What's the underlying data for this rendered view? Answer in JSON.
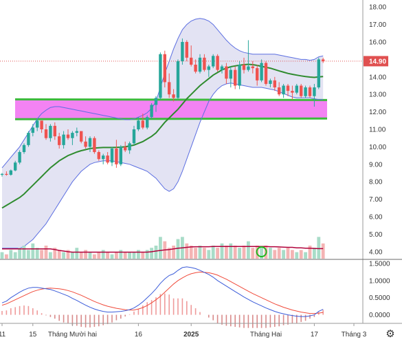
{
  "chart_data": {
    "type": "candlestick",
    "main_panel": {
      "ylim": [
        3.6,
        18.4
      ],
      "yticks": [
        "18.00",
        "17.00",
        "16.00",
        "15.00",
        "14.00",
        "13.00",
        "12.00",
        "11.00",
        "10.00",
        "9.00",
        "8.00",
        "7.00",
        "6.00",
        "5.00",
        "4.00"
      ],
      "last_price": "14.90",
      "bands": {
        "pink_zone": [
          11.7,
          12.6
        ]
      },
      "colors": {
        "up": "#26a69a",
        "down": "#ef5350",
        "ma": "#2e8b2e",
        "bollinger": "#5b6ee1",
        "bollinger_fill": "#e3e3f3",
        "zone_fill": "#f27cf2",
        "zone_edge": "#3cba3c",
        "volume_ma": "#b0003a",
        "price_line": "#e05050",
        "macd": "#3a5bd9",
        "signal": "#f04a3a",
        "hist_up": "#ef9a9a",
        "hist_dn": "#d88a8a",
        "highlight_circle": "#1fb81f"
      },
      "candles": [
        [
          8.4,
          8.5,
          8.3,
          8.45
        ],
        [
          8.45,
          8.6,
          8.35,
          8.4
        ],
        [
          8.4,
          8.7,
          8.35,
          8.65
        ],
        [
          8.65,
          9.2,
          8.6,
          9.1
        ],
        [
          9.1,
          9.8,
          9.0,
          9.7
        ],
        [
          9.7,
          10.2,
          9.6,
          10.1
        ],
        [
          10.1,
          10.9,
          10.0,
          10.8
        ],
        [
          10.8,
          11.3,
          10.6,
          11.1
        ],
        [
          11.1,
          11.6,
          10.9,
          11.5
        ],
        [
          11.5,
          11.4,
          10.8,
          11.0
        ],
        [
          11.0,
          11.3,
          10.4,
          10.5
        ],
        [
          10.5,
          11.3,
          10.3,
          11.2
        ],
        [
          11.2,
          11.4,
          10.4,
          10.6
        ],
        [
          10.6,
          10.8,
          9.9,
          10.1
        ],
        [
          10.1,
          10.9,
          9.9,
          10.7
        ],
        [
          10.7,
          11.0,
          10.4,
          10.5
        ],
        [
          10.5,
          10.9,
          10.1,
          10.8
        ],
        [
          10.8,
          11.1,
          10.6,
          10.9
        ],
        [
          10.9,
          10.8,
          10.2,
          10.3
        ],
        [
          10.3,
          10.6,
          9.9,
          10.0
        ],
        [
          10.0,
          10.6,
          9.7,
          10.5
        ],
        [
          10.5,
          10.6,
          9.6,
          9.7
        ],
        [
          9.7,
          9.8,
          9.2,
          9.3
        ],
        [
          9.3,
          9.6,
          9.0,
          9.5
        ],
        [
          9.5,
          9.7,
          9.0,
          9.1
        ],
        [
          9.1,
          10.0,
          8.9,
          9.9
        ],
        [
          9.9,
          10.4,
          8.8,
          9.0
        ],
        [
          9.0,
          10.1,
          8.9,
          10.0
        ],
        [
          10.0,
          10.3,
          9.7,
          9.8
        ],
        [
          9.8,
          10.3,
          9.6,
          10.2
        ],
        [
          10.2,
          11.2,
          10.1,
          11.0
        ],
        [
          11.0,
          11.7,
          10.9,
          11.5
        ],
        [
          11.5,
          11.9,
          11.0,
          11.1
        ],
        [
          11.1,
          11.8,
          11.0,
          11.7
        ],
        [
          11.7,
          12.5,
          11.6,
          12.4
        ],
        [
          12.4,
          12.9,
          12.0,
          12.8
        ],
        [
          12.8,
          15.4,
          12.7,
          15.3
        ],
        [
          15.3,
          15.5,
          13.4,
          13.7
        ],
        [
          13.7,
          14.2,
          12.8,
          13.0
        ],
        [
          13.0,
          13.3,
          12.6,
          12.8
        ],
        [
          12.8,
          15.0,
          12.7,
          14.9
        ],
        [
          14.9,
          16.2,
          14.7,
          16.0
        ],
        [
          16.0,
          16.1,
          14.9,
          15.1
        ],
        [
          15.1,
          15.8,
          14.6,
          14.7
        ],
        [
          14.7,
          15.0,
          14.2,
          14.3
        ],
        [
          14.3,
          15.3,
          14.2,
          15.1
        ],
        [
          15.1,
          15.3,
          14.3,
          14.4
        ],
        [
          14.4,
          14.7,
          14.0,
          14.6
        ],
        [
          14.6,
          15.3,
          14.5,
          15.2
        ],
        [
          15.2,
          15.3,
          14.3,
          14.4
        ],
        [
          14.4,
          14.7,
          14.2,
          14.6
        ],
        [
          14.6,
          14.8,
          13.6,
          13.9
        ],
        [
          13.9,
          14.6,
          13.4,
          14.4
        ],
        [
          14.4,
          14.6,
          13.3,
          13.5
        ],
        [
          13.5,
          14.9,
          13.3,
          14.7
        ],
        [
          14.7,
          15.1,
          14.2,
          14.4
        ],
        [
          14.4,
          16.1,
          14.3,
          14.6
        ],
        [
          14.6,
          14.9,
          14.2,
          14.5
        ],
        [
          14.5,
          14.7,
          13.5,
          13.8
        ],
        [
          13.8,
          15.0,
          13.7,
          14.8
        ],
        [
          14.8,
          14.9,
          13.5,
          13.6
        ],
        [
          13.6,
          13.9,
          13.4,
          13.8
        ],
        [
          13.8,
          14.0,
          13.2,
          13.4
        ],
        [
          13.4,
          13.7,
          12.9,
          13.0
        ],
        [
          13.0,
          13.6,
          12.8,
          13.5
        ],
        [
          13.5,
          13.6,
          12.9,
          13.2
        ],
        [
          13.2,
          13.5,
          12.7,
          13.1
        ],
        [
          13.1,
          13.6,
          13.0,
          13.5
        ],
        [
          13.5,
          13.6,
          12.8,
          12.9
        ],
        [
          12.9,
          13.5,
          12.8,
          13.4
        ],
        [
          13.4,
          13.5,
          12.8,
          12.9
        ],
        [
          12.9,
          13.6,
          12.3,
          13.4
        ],
        [
          13.4,
          15.1,
          13.3,
          15.0
        ],
        [
          15.0,
          15.1,
          14.8,
          14.9
        ]
      ],
      "ma20": [
        6.5,
        6.65,
        6.8,
        6.95,
        7.1,
        7.3,
        7.55,
        7.8,
        8.05,
        8.3,
        8.55,
        8.8,
        9.0,
        9.2,
        9.35,
        9.5,
        9.6,
        9.7,
        9.78,
        9.84,
        9.9,
        9.93,
        9.95,
        9.96,
        9.96,
        9.96,
        9.97,
        9.98,
        10.0,
        10.05,
        10.1,
        10.2,
        10.3,
        10.45,
        10.6,
        10.8,
        11.1,
        11.4,
        11.65,
        11.9,
        12.15,
        12.45,
        12.75,
        13.0,
        13.25,
        13.5,
        13.7,
        13.9,
        14.1,
        14.25,
        14.4,
        14.5,
        14.58,
        14.63,
        14.67,
        14.7,
        14.72,
        14.7,
        14.66,
        14.6,
        14.55,
        14.5,
        14.42,
        14.34,
        14.27,
        14.2,
        14.15,
        14.1,
        14.06,
        14.02,
        13.99,
        13.97,
        14.0,
        14.02
      ],
      "bb_upper": [
        8.8,
        9.1,
        9.4,
        9.7,
        10.0,
        10.4,
        10.8,
        11.2,
        11.6,
        11.9,
        12.1,
        12.25,
        12.3,
        12.3,
        12.25,
        12.2,
        12.15,
        12.1,
        12.05,
        12.0,
        11.95,
        11.9,
        11.85,
        11.8,
        11.75,
        11.7,
        11.65,
        11.6,
        11.55,
        11.55,
        11.6,
        11.7,
        11.8,
        11.95,
        12.2,
        12.6,
        13.4,
        14.2,
        14.9,
        15.6,
        16.2,
        16.7,
        17.0,
        17.2,
        17.3,
        17.35,
        17.3,
        17.2,
        17.0,
        16.7,
        16.4,
        16.1,
        15.85,
        15.65,
        15.5,
        15.4,
        15.35,
        15.3,
        15.3,
        15.3,
        15.3,
        15.3,
        15.3,
        15.25,
        15.2,
        15.15,
        15.1,
        15.05,
        15.0,
        15.0,
        14.95,
        15.0,
        15.15,
        15.2
      ],
      "bb_lower": [
        4.2,
        4.2,
        4.2,
        4.2,
        4.2,
        4.3,
        4.5,
        4.7,
        5.0,
        5.3,
        5.6,
        6.0,
        6.4,
        6.8,
        7.2,
        7.6,
        8.0,
        8.3,
        8.6,
        8.8,
        9.0,
        9.1,
        9.15,
        9.2,
        9.2,
        9.2,
        9.15,
        9.1,
        9.05,
        9.0,
        8.9,
        8.8,
        8.7,
        8.6,
        8.4,
        8.2,
        7.9,
        7.6,
        7.45,
        7.6,
        8.0,
        8.6,
        9.3,
        10.0,
        10.7,
        11.4,
        12.0,
        12.6,
        13.0,
        13.3,
        13.5,
        13.6,
        13.65,
        13.6,
        13.55,
        13.5,
        13.45,
        13.4,
        13.4,
        13.4,
        13.35,
        13.3,
        13.25,
        13.15,
        13.05,
        12.95,
        12.85,
        12.8,
        12.8,
        12.8,
        12.8,
        12.75,
        12.7,
        12.7
      ]
    },
    "volume_panel": {
      "volumes": [
        0.3,
        0.2,
        0.4,
        0.3,
        0.5,
        0.6,
        0.4,
        0.7,
        0.5,
        0.4,
        0.6,
        0.3,
        0.5,
        0.4,
        0.3,
        0.4,
        0.3,
        0.5,
        0.3,
        0.4,
        0.3,
        0.2,
        0.3,
        0.4,
        0.3,
        0.2,
        0.3,
        0.4,
        0.3,
        0.3,
        0.3,
        0.4,
        0.3,
        0.4,
        0.5,
        0.6,
        1.0,
        0.8,
        0.5,
        0.6,
        0.9,
        1.0,
        0.7,
        0.6,
        0.5,
        0.6,
        0.5,
        0.4,
        0.6,
        0.5,
        0.7,
        0.6,
        0.7,
        0.6,
        0.5,
        0.6,
        0.8,
        0.5,
        0.6,
        0.5,
        0.6,
        0.5,
        0.4,
        0.5,
        0.4,
        0.5,
        0.4,
        0.3,
        0.4,
        0.3,
        0.6,
        0.5,
        1.0,
        0.7
      ],
      "volume_ma": [
        0.45,
        0.45,
        0.45,
        0.45,
        0.45,
        0.45,
        0.45,
        0.45,
        0.45,
        0.45,
        0.45,
        0.45,
        0.42,
        0.38,
        0.35,
        0.32,
        0.3,
        0.3,
        0.3,
        0.3,
        0.3,
        0.3,
        0.3,
        0.3,
        0.3,
        0.3,
        0.3,
        0.3,
        0.3,
        0.3,
        0.3,
        0.3,
        0.3,
        0.3,
        0.32,
        0.35,
        0.38,
        0.4,
        0.42,
        0.45,
        0.48,
        0.5,
        0.52,
        0.54,
        0.55,
        0.55,
        0.55,
        0.55,
        0.56,
        0.56,
        0.56,
        0.56,
        0.56,
        0.56,
        0.56,
        0.56,
        0.56,
        0.56,
        0.56,
        0.56,
        0.56,
        0.55,
        0.55,
        0.54,
        0.53,
        0.52,
        0.52,
        0.5,
        0.5,
        0.48,
        0.48,
        0.47,
        0.46,
        0.46
      ]
    },
    "macd_panel": {
      "ylim": [
        -0.25,
        1.6
      ],
      "yticks": [
        "1.5000",
        "1.0000",
        "0.5000",
        "0.0000"
      ],
      "macd": [
        0.35,
        0.4,
        0.5,
        0.58,
        0.66,
        0.73,
        0.78,
        0.8,
        0.8,
        0.78,
        0.76,
        0.74,
        0.7,
        0.65,
        0.6,
        0.55,
        0.48,
        0.42,
        0.35,
        0.28,
        0.22,
        0.17,
        0.13,
        0.1,
        0.08,
        0.08,
        0.09,
        0.1,
        0.12,
        0.15,
        0.2,
        0.28,
        0.38,
        0.5,
        0.62,
        0.76,
        0.92,
        1.05,
        1.15,
        1.2,
        1.3,
        1.38,
        1.4,
        1.38,
        1.35,
        1.3,
        1.24,
        1.18,
        1.1,
        1.0,
        0.92,
        0.84,
        0.76,
        0.68,
        0.6,
        0.52,
        0.45,
        0.38,
        0.32,
        0.26,
        0.2,
        0.15,
        0.1,
        0.06,
        0.03,
        0.0,
        -0.02,
        -0.04,
        -0.05,
        -0.05,
        -0.03,
        0.0,
        0.1,
        0.16
      ],
      "signal": [
        0.28,
        0.32,
        0.38,
        0.44,
        0.5,
        0.56,
        0.62,
        0.68,
        0.72,
        0.75,
        0.77,
        0.78,
        0.77,
        0.76,
        0.74,
        0.71,
        0.67,
        0.62,
        0.57,
        0.51,
        0.45,
        0.39,
        0.34,
        0.29,
        0.25,
        0.22,
        0.19,
        0.17,
        0.15,
        0.14,
        0.14,
        0.17,
        0.21,
        0.27,
        0.35,
        0.44,
        0.54,
        0.66,
        0.78,
        0.9,
        1.0,
        1.08,
        1.15,
        1.2,
        1.23,
        1.25,
        1.24,
        1.23,
        1.2,
        1.16,
        1.1,
        1.04,
        0.97,
        0.9,
        0.83,
        0.76,
        0.69,
        0.62,
        0.56,
        0.5,
        0.44,
        0.38,
        0.32,
        0.27,
        0.22,
        0.18,
        0.14,
        0.11,
        0.08,
        0.06,
        0.04,
        0.04,
        0.05,
        0.07
      ]
    },
    "x_labels": [
      {
        "label": "11",
        "idx": 0
      },
      {
        "label": "15",
        "idx": 7
      },
      {
        "label": "Tháng Mười hai",
        "idx": 16
      },
      {
        "label": "16",
        "idx": 31
      },
      {
        "label": "2025",
        "idx": 43
      },
      {
        "label": "Tháng Hai",
        "idx": 60
      },
      {
        "label": "17",
        "idx": 71
      },
      {
        "label": "Tháng 3",
        "idx": 80
      }
    ]
  }
}
